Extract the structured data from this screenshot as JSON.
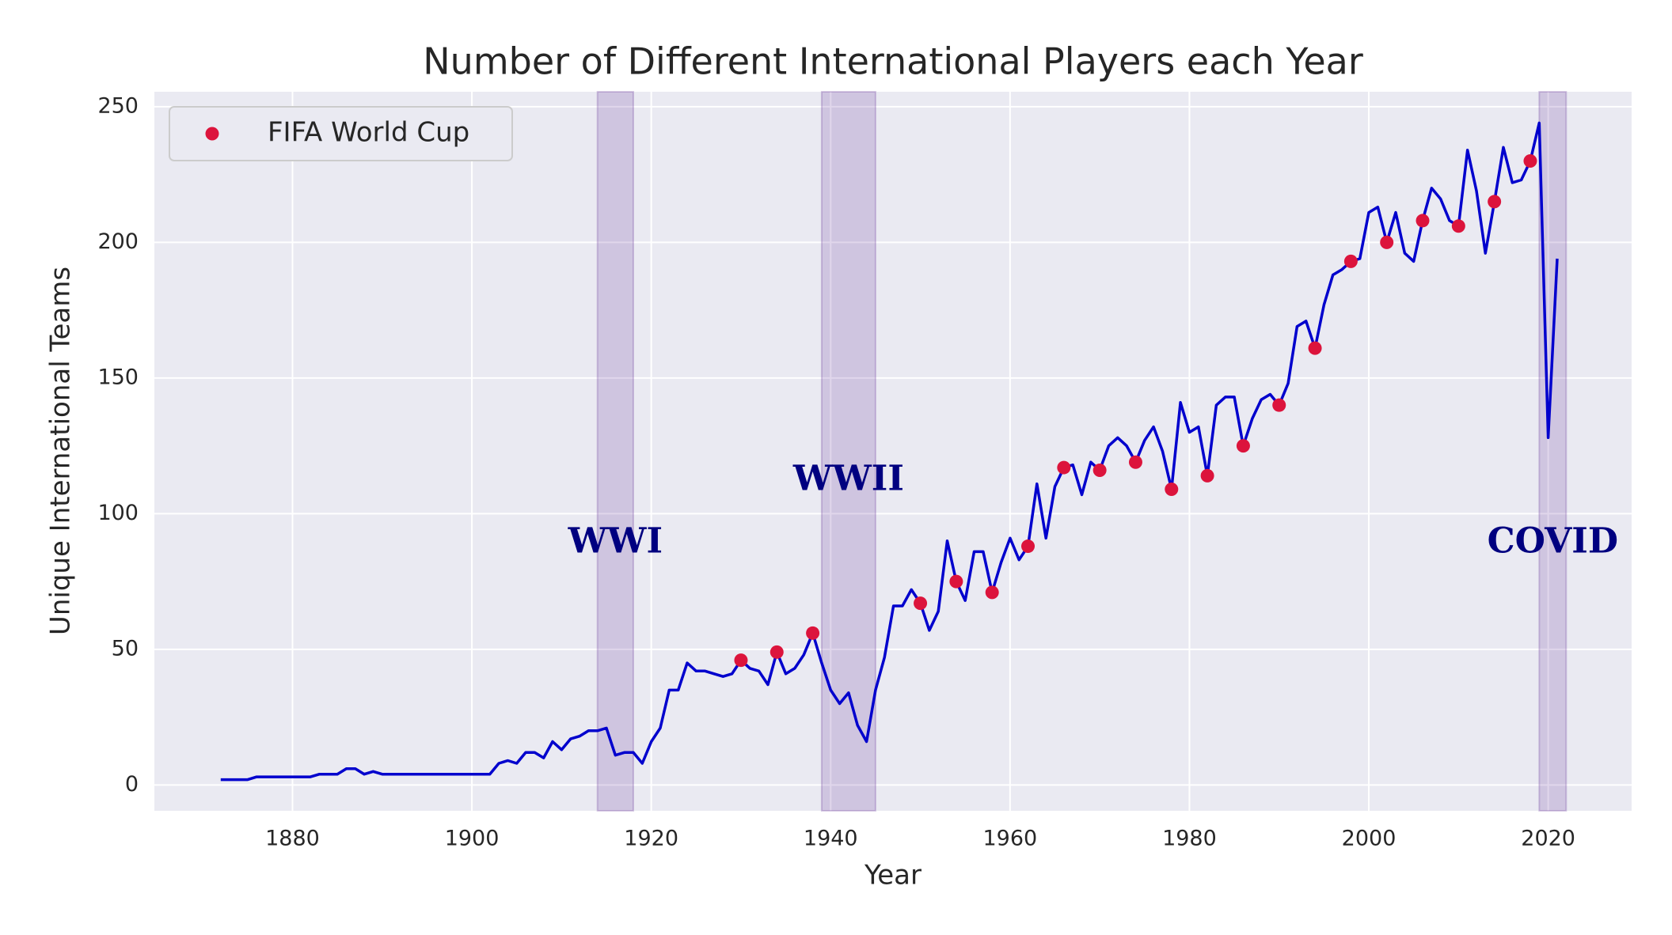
{
  "chart_data": {
    "type": "line",
    "title": "Number of Different International Players each Year",
    "x_label": "Year",
    "y_label": "Unique International Teams",
    "xlim": [
      1864.6,
      2029.3
    ],
    "ylim": [
      -9.5,
      255.5
    ],
    "xticks": [
      1880,
      1900,
      1920,
      1940,
      1960,
      1980,
      2000,
      2020
    ],
    "yticks": [
      0,
      50,
      100,
      150,
      200,
      250
    ],
    "grid": true,
    "legend_position": "upper left",
    "series": [
      {
        "name": null,
        "color": "#0000cd",
        "x": [
          1872,
          1873,
          1874,
          1875,
          1876,
          1877,
          1878,
          1879,
          1880,
          1881,
          1882,
          1883,
          1884,
          1885,
          1886,
          1887,
          1888,
          1889,
          1890,
          1891,
          1892,
          1893,
          1894,
          1895,
          1896,
          1897,
          1898,
          1899,
          1900,
          1901,
          1902,
          1903,
          1904,
          1905,
          1906,
          1907,
          1908,
          1909,
          1910,
          1911,
          1912,
          1913,
          1914,
          1915,
          1916,
          1917,
          1918,
          1919,
          1920,
          1921,
          1922,
          1923,
          1924,
          1925,
          1926,
          1927,
          1928,
          1929,
          1930,
          1931,
          1932,
          1933,
          1934,
          1935,
          1936,
          1937,
          1938,
          1939,
          1940,
          1941,
          1942,
          1943,
          1944,
          1945,
          1946,
          1947,
          1948,
          1949,
          1950,
          1951,
          1952,
          1953,
          1954,
          1955,
          1956,
          1957,
          1958,
          1959,
          1960,
          1961,
          1962,
          1963,
          1964,
          1965,
          1966,
          1967,
          1968,
          1969,
          1970,
          1971,
          1972,
          1973,
          1974,
          1975,
          1976,
          1977,
          1978,
          1979,
          1980,
          1981,
          1982,
          1983,
          1984,
          1985,
          1986,
          1987,
          1988,
          1989,
          1990,
          1991,
          1992,
          1993,
          1994,
          1995,
          1996,
          1997,
          1998,
          1999,
          2000,
          2001,
          2002,
          2003,
          2004,
          2005,
          2006,
          2007,
          2008,
          2009,
          2010,
          2011,
          2012,
          2013,
          2014,
          2015,
          2016,
          2017,
          2018,
          2019,
          2020,
          2021
        ],
        "values": [
          2,
          2,
          2,
          2,
          3,
          3,
          3,
          3,
          3,
          3,
          3,
          4,
          4,
          4,
          6,
          6,
          4,
          5,
          4,
          4,
          4,
          4,
          4,
          4,
          4,
          4,
          4,
          4,
          4,
          4,
          4,
          8,
          9,
          8,
          12,
          12,
          10,
          16,
          13,
          17,
          18,
          20,
          20,
          21,
          11,
          12,
          12,
          8,
          16,
          21,
          35,
          35,
          45,
          42,
          42,
          41,
          40,
          41,
          46,
          43,
          42,
          37,
          49,
          41,
          43,
          48,
          56,
          45,
          35,
          30,
          34,
          22,
          16,
          35,
          47,
          66,
          66,
          72,
          67,
          57,
          64,
          90,
          75,
          68,
          86,
          86,
          71,
          82,
          91,
          83,
          88,
          111,
          91,
          110,
          117,
          118,
          107,
          119,
          116,
          125,
          128,
          125,
          119,
          127,
          132,
          123,
          109,
          141,
          130,
          132,
          114,
          140,
          143,
          143,
          125,
          135,
          142,
          144,
          140,
          148,
          169,
          171,
          161,
          177,
          188,
          190,
          193,
          194,
          211,
          213,
          200,
          211,
          196,
          193,
          208,
          220,
          216,
          208,
          206,
          234,
          219,
          196,
          215,
          235,
          222,
          223,
          230,
          244,
          128,
          194
        ]
      },
      {
        "name": "FIFA World Cup",
        "color": "#dc143c",
        "type": "scatter",
        "x": [
          1930,
          1934,
          1938,
          1950,
          1954,
          1958,
          1962,
          1966,
          1970,
          1974,
          1978,
          1982,
          1986,
          1990,
          1994,
          1998,
          2002,
          2006,
          2010,
          2014,
          2018
        ],
        "values": [
          46,
          49,
          56,
          67,
          75,
          71,
          88,
          117,
          116,
          119,
          109,
          114,
          125,
          140,
          161,
          193,
          200,
          208,
          206,
          215,
          230
        ]
      }
    ],
    "spans": [
      {
        "label": "WWI",
        "start": 1914,
        "end": 1918,
        "label_y": 89
      },
      {
        "label": "WWII",
        "start": 1939,
        "end": 1945,
        "label_y": 112
      },
      {
        "label": "COVID",
        "start": 2019,
        "end": 2022,
        "label_y": 89
      }
    ]
  }
}
